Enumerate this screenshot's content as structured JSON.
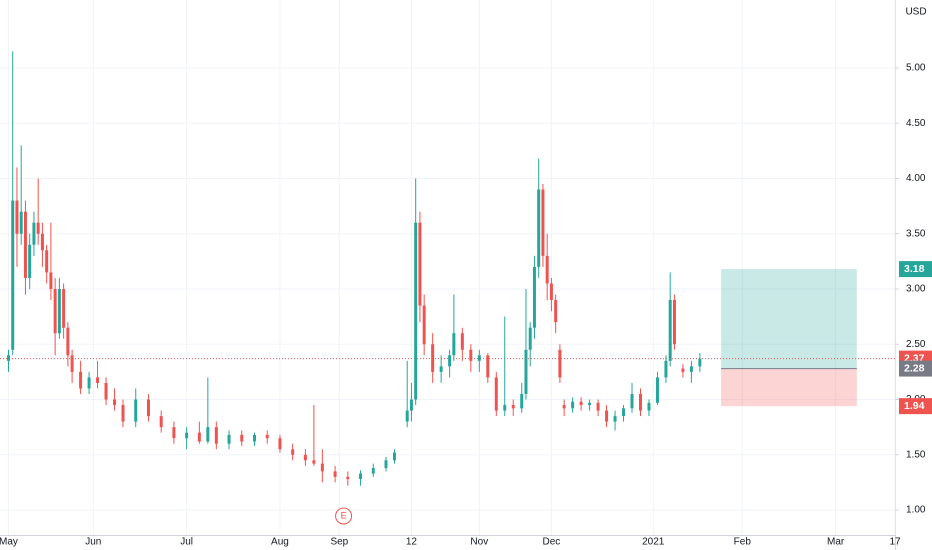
{
  "chart_data": {
    "type": "candlestick",
    "currency": "USD",
    "x": [
      0,
      1,
      2,
      3,
      4,
      5,
      6,
      7,
      8,
      9,
      10,
      11,
      12,
      13,
      14,
      15,
      17,
      19,
      21,
      23,
      25,
      27,
      30,
      33,
      36,
      39,
      42,
      45,
      47,
      49,
      52,
      55,
      58,
      61,
      64,
      67,
      70,
      72,
      74,
      77,
      80,
      83,
      86,
      89,
      91,
      94,
      95,
      96,
      97,
      98,
      100,
      102,
      104,
      105,
      107,
      109,
      111,
      113,
      115,
      117,
      119,
      121,
      122,
      123,
      124,
      125,
      126,
      127,
      128,
      129,
      130,
      131,
      133,
      135,
      137,
      139,
      141,
      143,
      145,
      147,
      149,
      151,
      153,
      155,
      156,
      157,
      159,
      161,
      163
    ],
    "open": [
      2.35,
      2.45,
      3.8,
      3.5,
      3.7,
      3.1,
      3.4,
      3.6,
      3.5,
      3.35,
      3.15,
      3.0,
      2.6,
      3.0,
      2.65,
      2.4,
      2.25,
      2.1,
      2.2,
      2.15,
      2.0,
      1.95,
      1.8,
      2.0,
      1.85,
      1.75,
      1.65,
      1.7,
      1.62,
      1.75,
      1.6,
      1.68,
      1.62,
      1.68,
      1.65,
      1.55,
      1.5,
      1.45,
      1.42,
      1.35,
      1.3,
      1.28,
      1.33,
      1.38,
      1.45,
      1.8,
      1.9,
      2.0,
      3.6,
      2.85,
      2.5,
      2.25,
      2.3,
      2.4,
      2.6,
      2.45,
      2.35,
      2.4,
      2.2,
      1.9,
      1.95,
      1.92,
      2.05,
      2.45,
      2.65,
      3.2,
      3.9,
      3.3,
      3.05,
      2.9,
      2.45,
      1.95,
      1.92,
      1.98,
      1.95,
      1.97,
      1.9,
      1.8,
      1.85,
      1.92,
      2.05,
      1.9,
      1.97,
      2.2,
      2.35,
      2.9,
      2.28,
      2.25,
      2.3
    ],
    "high": [
      2.45,
      5.15,
      4.1,
      4.3,
      3.8,
      3.5,
      3.7,
      4.0,
      3.6,
      3.4,
      3.6,
      3.1,
      3.1,
      3.05,
      2.7,
      2.45,
      2.35,
      2.25,
      2.35,
      2.2,
      2.1,
      2.0,
      2.1,
      2.05,
      1.9,
      1.8,
      1.75,
      1.8,
      2.2,
      1.8,
      1.72,
      1.72,
      1.7,
      1.72,
      1.68,
      1.6,
      1.55,
      1.95,
      1.55,
      1.4,
      1.35,
      1.36,
      1.42,
      1.48,
      1.55,
      2.35,
      2.15,
      4.0,
      3.7,
      2.95,
      2.6,
      2.4,
      2.45,
      2.95,
      2.65,
      2.5,
      2.45,
      2.42,
      2.25,
      2.75,
      2.0,
      2.15,
      3.0,
      2.7,
      3.3,
      4.18,
      3.95,
      3.5,
      3.1,
      2.95,
      2.5,
      2.0,
      2.02,
      2.02,
      2.0,
      2.0,
      1.95,
      1.9,
      1.95,
      2.15,
      2.1,
      2.0,
      2.25,
      2.4,
      3.15,
      2.95,
      2.32,
      2.35,
      2.42
    ],
    "low": [
      2.25,
      2.4,
      3.2,
      3.4,
      2.95,
      3.0,
      3.3,
      3.4,
      3.2,
      3.05,
      2.9,
      2.4,
      2.55,
      2.55,
      2.3,
      2.15,
      2.05,
      2.05,
      2.1,
      1.95,
      1.9,
      1.75,
      1.75,
      1.8,
      1.7,
      1.6,
      1.55,
      1.6,
      1.6,
      1.55,
      1.55,
      1.58,
      1.58,
      1.6,
      1.52,
      1.45,
      1.4,
      1.4,
      1.25,
      1.25,
      1.22,
      1.22,
      1.3,
      1.35,
      1.42,
      1.75,
      1.8,
      1.95,
      2.7,
      2.4,
      2.15,
      2.15,
      2.2,
      2.35,
      2.35,
      2.25,
      2.25,
      2.15,
      1.85,
      1.85,
      1.85,
      1.88,
      2.0,
      2.3,
      2.55,
      3.1,
      3.2,
      2.9,
      2.8,
      2.6,
      2.15,
      1.85,
      1.88,
      1.9,
      1.9,
      1.85,
      1.75,
      1.72,
      1.8,
      1.88,
      1.85,
      1.85,
      1.95,
      2.15,
      2.3,
      2.45,
      2.2,
      2.15,
      2.25
    ],
    "close": [
      2.4,
      3.8,
      3.5,
      3.7,
      3.1,
      3.4,
      3.6,
      3.5,
      3.35,
      3.15,
      3.0,
      2.6,
      3.0,
      2.65,
      2.4,
      2.25,
      2.1,
      2.2,
      2.15,
      2.0,
      1.95,
      1.8,
      2.0,
      1.85,
      1.75,
      1.65,
      1.7,
      1.62,
      1.75,
      1.6,
      1.68,
      1.62,
      1.68,
      1.65,
      1.55,
      1.5,
      1.45,
      1.42,
      1.35,
      1.3,
      1.28,
      1.33,
      1.38,
      1.45,
      1.52,
      1.9,
      2.0,
      3.6,
      2.85,
      2.5,
      2.25,
      2.3,
      2.4,
      2.6,
      2.45,
      2.35,
      2.4,
      2.2,
      1.9,
      1.95,
      1.92,
      2.05,
      2.45,
      2.65,
      3.2,
      3.9,
      3.3,
      3.05,
      2.9,
      2.7,
      2.2,
      1.92,
      1.98,
      1.95,
      1.97,
      1.9,
      1.8,
      1.85,
      1.92,
      2.05,
      1.9,
      1.97,
      2.2,
      2.35,
      2.9,
      2.5,
      2.25,
      2.3,
      2.37
    ],
    "up_color": "#26a69a",
    "down_color": "#ef5350",
    "xlim": [
      -2,
      209
    ],
    "xticks": [
      {
        "value": 0,
        "label": "May"
      },
      {
        "value": 20,
        "label": "Jun"
      },
      {
        "value": 42,
        "label": "Jul"
      },
      {
        "value": 64,
        "label": "Aug"
      },
      {
        "value": 78,
        "label": "Sep"
      },
      {
        "value": 95,
        "label": "12"
      },
      {
        "value": 111,
        "label": "Nov"
      },
      {
        "value": 128,
        "label": "Dec"
      },
      {
        "value": 152,
        "label": "2021"
      },
      {
        "value": 173,
        "label": "Feb"
      },
      {
        "value": 195,
        "label": "Mar"
      },
      {
        "value": 209,
        "label": "17"
      }
    ],
    "ylim": [
      0.774,
      5.615
    ],
    "yticks": [
      {
        "value": 1,
        "label": "1.00"
      },
      {
        "value": 1.5,
        "label": "1.50"
      },
      {
        "value": 2,
        "label": "2.00"
      },
      {
        "value": 2.5,
        "label": "2.50"
      },
      {
        "value": 3,
        "label": "3.00"
      },
      {
        "value": 3.5,
        "label": "3.50"
      },
      {
        "value": 4,
        "label": "4.00"
      },
      {
        "value": 4.5,
        "label": "4.50"
      },
      {
        "value": 5,
        "label": "5.00"
      }
    ],
    "grid": true,
    "last_price": {
      "value": 2.37,
      "label": "2.37"
    },
    "position": {
      "x_start": 168,
      "x_end": 200,
      "target": {
        "value": 3.18,
        "label": "3.18"
      },
      "entry": {
        "value": 2.28,
        "label": "2.28"
      },
      "stop": {
        "value": 1.94,
        "label": "1.94"
      }
    },
    "events": [
      {
        "x": 79,
        "label": "E"
      }
    ]
  }
}
